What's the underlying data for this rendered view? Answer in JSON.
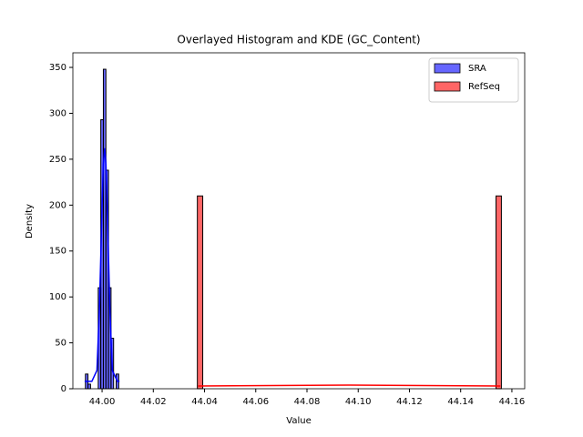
{
  "chart_data": {
    "type": "histogram",
    "title": "Overlayed Histogram and KDE (GC_Content)",
    "x_label": "Value",
    "y_label": "Density",
    "xlim": [
      43.9886,
      44.165
    ],
    "ylim": [
      0,
      365.9
    ],
    "xticks": [
      {
        "value": 44.0,
        "label": "44.00"
      },
      44.02,
      44.04,
      44.06,
      44.08,
      {
        "value": 44.1,
        "label": "44.10"
      },
      44.12,
      44.14,
      44.16
    ],
    "yticks": [
      0,
      50,
      100,
      150,
      200,
      250,
      300,
      350
    ],
    "legend": "upper right",
    "series": [
      {
        "name": "SRA",
        "color": "#0000ff",
        "bins": [
          43.9935,
          43.9945,
          43.9955,
          43.9965,
          43.9975,
          43.9985,
          43.9995,
          44.0005,
          44.0015,
          44.0025,
          44.0035,
          44.0045,
          44.0055,
          44.0065
        ],
        "values": [
          16,
          5,
          0,
          0,
          0,
          110,
          293,
          348,
          238,
          110,
          55,
          0,
          16
        ],
        "kde": {
          "x": [
            43.9932,
            43.996,
            43.998,
            43.999,
            44.0,
            44.0005,
            44.001,
            44.0015,
            44.002,
            44.003,
            44.004,
            44.006,
            44.0068
          ],
          "y": [
            8,
            8,
            20,
            90,
            200,
            245,
            262,
            245,
            200,
            90,
            20,
            8,
            8
          ]
        }
      },
      {
        "name": "RefSeq",
        "color": "#ff0000",
        "bins": [
          44.0372,
          44.0393,
          44.1538,
          44.1559
        ],
        "values": [
          210,
          0,
          210
        ],
        "kde": {
          "x": [
            44.0375,
            44.097,
            44.1555
          ],
          "y": [
            3,
            4,
            3
          ]
        }
      }
    ]
  }
}
